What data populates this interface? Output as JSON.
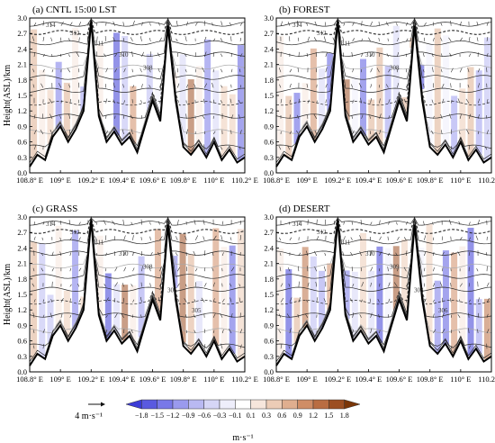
{
  "chart_data": [
    {
      "type": "heatmap",
      "title": "(a) CNTL 15:00 LST",
      "ylabel": "Height(ASL)/km",
      "x_ticks": [
        "108.8° E",
        "109° E",
        "109.2° E",
        "109.4° E",
        "109.6° E",
        "109.8° E",
        "110° E",
        "110.2° E"
      ],
      "y_ticks": [
        "0.0",
        "0.3",
        "0.6",
        "0.9",
        "1.2",
        "1.5",
        "1.8",
        "2.1",
        "2.4",
        "2.7",
        "3.0"
      ],
      "xlim": [
        108.8,
        110.2
      ],
      "ylim": [
        0,
        3.0
      ],
      "contour_labels": [
        "314",
        "312",
        "311",
        "310",
        "308"
      ]
    },
    {
      "type": "heatmap",
      "title": "(b) FOREST",
      "ylabel": "",
      "x_ticks": [
        "108.8° E",
        "109° E",
        "109.2° E",
        "109.4° E",
        "109.6° E",
        "109.8° E",
        "110° E",
        "110.2° E"
      ],
      "y_ticks": [
        "0.0",
        "0.3",
        "0.6",
        "0.9",
        "1.2",
        "1.5",
        "1.8",
        "2.1",
        "2.4",
        "2.7",
        "3.0"
      ],
      "xlim": [
        108.8,
        110.2
      ],
      "ylim": [
        0,
        3.0
      ],
      "contour_labels": [
        "314",
        "312",
        "311",
        "310",
        "308"
      ]
    },
    {
      "type": "heatmap",
      "title": "(c) GRASS",
      "ylabel": "Height(ASL)/km",
      "x_ticks": [
        "108.8° E",
        "109° E",
        "109.2° E",
        "109.4° E",
        "109.6° E",
        "109.8° E",
        "110° E",
        "110.2° E"
      ],
      "y_ticks": [
        "0.0",
        "0.3",
        "0.6",
        "0.9",
        "1.2",
        "1.5",
        "1.8",
        "2.1",
        "2.4",
        "2.7",
        "3.0"
      ],
      "xlim": [
        108.8,
        110.2
      ],
      "ylim": [
        0,
        3.0
      ],
      "contour_labels": [
        "314",
        "312",
        "311",
        "310",
        "308",
        "306",
        "305"
      ]
    },
    {
      "type": "heatmap",
      "title": "(d) DESERT",
      "ylabel": "",
      "x_ticks": [
        "108.8° E",
        "109° E",
        "109.2° E",
        "109.4° E",
        "109.6° E",
        "109.8° E",
        "110° E",
        "110.2° E"
      ],
      "y_ticks": [
        "0.0",
        "0.3",
        "0.6",
        "0.9",
        "1.2",
        "1.5",
        "1.8",
        "2.1",
        "2.4",
        "2.7",
        "3.0"
      ],
      "xlim": [
        108.8,
        110.2
      ],
      "ylim": [
        0,
        3.0
      ],
      "contour_labels": [
        "314",
        "312",
        "311",
        "310",
        "309",
        "308",
        "306"
      ]
    }
  ],
  "colorbar": {
    "ticks": [
      "−1.8",
      "−1.5",
      "−1.2",
      "−0.9",
      "−0.6",
      "−0.3",
      "−0.1",
      "0.1",
      "0.3",
      "0.6",
      "0.9",
      "1.2",
      "1.5",
      "1.8"
    ],
    "unit": "m·s⁻¹",
    "colors": [
      "#3b3bd6",
      "#5a5ae0",
      "#7878e8",
      "#9a9aee",
      "#b9b9f2",
      "#d6d6f6",
      "#eeeefb",
      "#ffffff",
      "#f6e6dc",
      "#ecccb6",
      "#dfae8f",
      "#cf8d66",
      "#b96d42",
      "#9c4f22",
      "#7a3608"
    ]
  },
  "reference_vector": "4 m·s⁻¹"
}
